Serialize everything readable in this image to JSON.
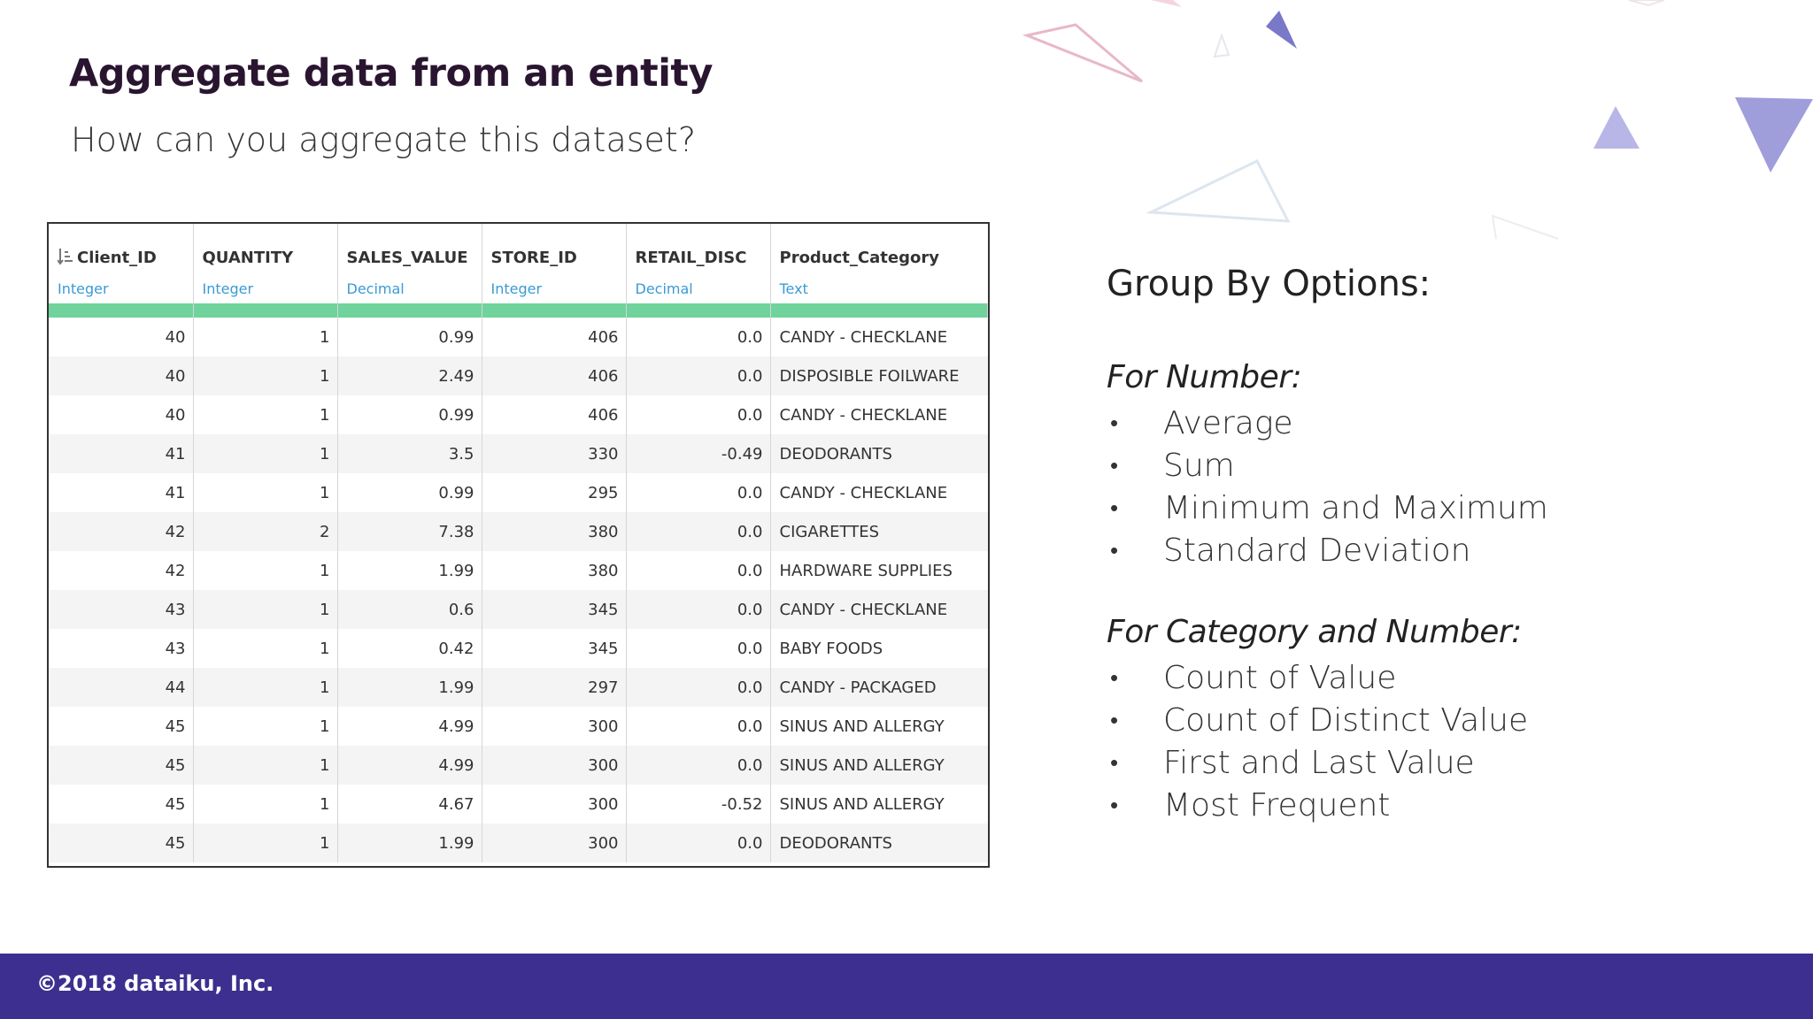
{
  "slide": {
    "title": "Aggregate data from an entity",
    "subtitle": "How can you aggregate this dataset?"
  },
  "table": {
    "columns": [
      {
        "name": "Client_ID",
        "type": "Integer"
      },
      {
        "name": "QUANTITY",
        "type": "Integer"
      },
      {
        "name": "SALES_VALUE",
        "type": "Decimal"
      },
      {
        "name": "STORE_ID",
        "type": "Integer"
      },
      {
        "name": "RETAIL_DISC",
        "type": "Decimal"
      },
      {
        "name": "Product_Category",
        "type": "Text"
      }
    ],
    "rows": [
      [
        "40",
        "1",
        "0.99",
        "406",
        "0.0",
        "CANDY - CHECKLANE"
      ],
      [
        "40",
        "1",
        "2.49",
        "406",
        "0.0",
        "DISPOSIBLE FOILWARE"
      ],
      [
        "40",
        "1",
        "0.99",
        "406",
        "0.0",
        "CANDY - CHECKLANE"
      ],
      [
        "41",
        "1",
        "3.5",
        "330",
        "-0.49",
        "DEODORANTS"
      ],
      [
        "41",
        "1",
        "0.99",
        "295",
        "0.0",
        "CANDY - CHECKLANE"
      ],
      [
        "42",
        "2",
        "7.38",
        "380",
        "0.0",
        "CIGARETTES"
      ],
      [
        "42",
        "1",
        "1.99",
        "380",
        "0.0",
        "HARDWARE SUPPLIES"
      ],
      [
        "43",
        "1",
        "0.6",
        "345",
        "0.0",
        "CANDY - CHECKLANE"
      ],
      [
        "43",
        "1",
        "0.42",
        "345",
        "0.0",
        "BABY FOODS"
      ],
      [
        "44",
        "1",
        "1.99",
        "297",
        "0.0",
        "CANDY - PACKAGED"
      ],
      [
        "45",
        "1",
        "4.99",
        "300",
        "0.0",
        "SINUS AND ALLERGY"
      ],
      [
        "45",
        "1",
        "4.99",
        "300",
        "0.0",
        "SINUS AND ALLERGY"
      ],
      [
        "45",
        "1",
        "4.67",
        "300",
        "-0.52",
        "SINUS AND ALLERGY"
      ],
      [
        "45",
        "1",
        "1.99",
        "300",
        "0.0",
        "DEODORANTS"
      ]
    ]
  },
  "group_by": {
    "title": "Group By Options:",
    "for_number": {
      "heading": "For Number:",
      "items": [
        "Average",
        "Sum",
        "Minimum and Maximum",
        "Standard Deviation"
      ]
    },
    "for_category": {
      "heading": "For Category and Number:",
      "items": [
        "Count of Value",
        "Count of Distinct Value",
        "First and Last Value",
        "Most Frequent"
      ]
    },
    "bullet": "•"
  },
  "footer": {
    "copyright": "©2018 dataiku, Inc."
  },
  "colors": {
    "footer_bg": "#3c2f8f",
    "type_text": "#3a9ad6",
    "header_bar": "#6fd39b",
    "title": "#2a1530"
  },
  "icons": {
    "sort": "sort-icon"
  }
}
